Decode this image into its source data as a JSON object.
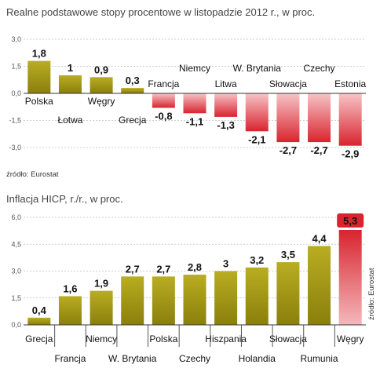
{
  "chart_data": [
    {
      "type": "bar",
      "title": "Realne podstawowe stopy procentowe w listopadzie 2012 r., w proc.",
      "source": "źródło: Eurostat",
      "categories": [
        "Polska",
        "Łotwa",
        "Węgry",
        "Grecja",
        "Francja",
        "Niemcy",
        "Litwa",
        "W. Brytania",
        "Słowacja",
        "Czechy",
        "Estonia"
      ],
      "values": [
        1.8,
        1,
        0.9,
        0.3,
        -0.8,
        -1.1,
        -1.3,
        -2.1,
        -2.7,
        -2.7,
        -2.9
      ],
      "value_labels": [
        "1,8",
        "1",
        "0,9",
        "0,3",
        "-0,8",
        "-1,1",
        "-1,3",
        "-2,1",
        "-2,7",
        "-2,7",
        "-2,9"
      ],
      "ylim": [
        -3.0,
        3.0
      ],
      "yticks": [
        3.0,
        1.5,
        0.0,
        -1.5,
        -3.0
      ],
      "ytick_labels": [
        "3,0",
        "1,5",
        "0,0",
        "-1,5",
        "-3,0"
      ],
      "grid": true,
      "colors": {
        "positive": "#9a8f12",
        "negative": "#d8242f"
      }
    },
    {
      "type": "bar",
      "title": "Inflacja HICP, r./r., w proc.",
      "source": "źródło: Eurostat",
      "categories": [
        "Grecja",
        "Francja",
        "Niemcy",
        "W. Brytania",
        "Polska",
        "Czechy",
        "Hiszpania",
        "Holandia",
        "Słowacja",
        "Rumunia",
        "Węgry"
      ],
      "values": [
        0.4,
        1.6,
        1.9,
        2.7,
        2.7,
        2.8,
        3,
        3.2,
        3.5,
        4.4,
        5.3
      ],
      "value_labels": [
        "0,4",
        "1,6",
        "1,9",
        "2,7",
        "2,7",
        "2,8",
        "3",
        "3,2",
        "3,5",
        "4,4",
        "5,3"
      ],
      "highlight_index": 10,
      "ylim": [
        0.0,
        6.0
      ],
      "yticks": [
        0.0,
        1.5,
        3.0,
        4.5,
        6.0
      ],
      "ytick_labels": [
        "0,0",
        "1,5",
        "3,0",
        "4,5",
        "6,0"
      ],
      "grid": true,
      "colors": {
        "bar": "#9a8f12",
        "highlight": "#d8242f",
        "highlight_label_bg": "#d8242f",
        "highlight_label_text": "#ffffff"
      }
    }
  ]
}
